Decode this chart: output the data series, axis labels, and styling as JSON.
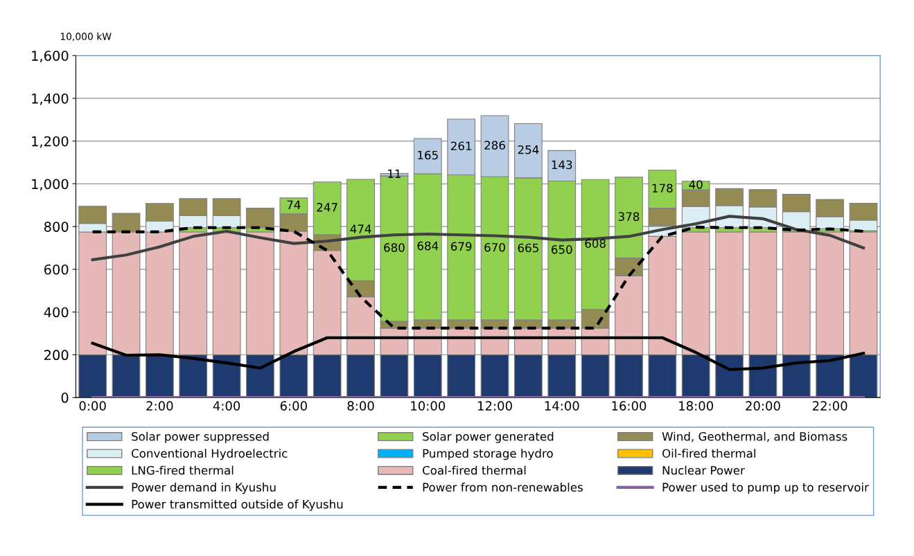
{
  "chart_data": {
    "type": "bar",
    "stacked": true,
    "ylabel": "10,000 kW",
    "categories": [
      "0:00",
      null,
      "2:00",
      null,
      "4:00",
      null,
      "6:00",
      null,
      "8:00",
      null,
      "10:00",
      null,
      "12:00",
      null,
      "14:00",
      null,
      "16:00",
      null,
      "18:00",
      null,
      "20:00",
      null,
      "22:00",
      null
    ],
    "ylim": [
      0,
      1600
    ],
    "yticks": [
      0,
      200,
      400,
      600,
      800,
      {
        "value": 1000,
        "label": "1,000"
      },
      {
        "value": 1200,
        "label": "1,200"
      },
      {
        "value": 1400,
        "label": "1,400"
      },
      {
        "value": 1600,
        "label": "1,600"
      }
    ],
    "grid": "y",
    "legend": "bottom",
    "marker": "none",
    "series": [
      {
        "name": "Nuclear Power",
        "color": "#1f3a6e",
        "values": [
          200,
          200,
          200,
          200,
          200,
          200,
          200,
          200,
          200,
          200,
          200,
          200,
          200,
          200,
          200,
          200,
          200,
          200,
          200,
          200,
          200,
          200,
          200,
          200
        ]
      },
      {
        "name": "Coal-fired thermal",
        "color": "#e6b8b7",
        "values": [
          575,
          575,
          575,
          575,
          575,
          575,
          578,
          488,
          271,
          125,
          125,
          125,
          125,
          125,
          125,
          125,
          369,
          554,
          575,
          575,
          575,
          575,
          575,
          575
        ]
      },
      {
        "name": "LNG-fired thermal",
        "color": "#92d050",
        "values": [
          0,
          0,
          0,
          20,
          20,
          20,
          0,
          0,
          0,
          0,
          0,
          0,
          0,
          0,
          0,
          0,
          0,
          0,
          20,
          20,
          20,
          5,
          15,
          5
        ]
      },
      {
        "name": "Oil-fired thermal",
        "color": "#ffc000",
        "values": [
          0,
          0,
          0,
          0,
          0,
          0,
          0,
          0,
          0,
          0,
          0,
          0,
          0,
          0,
          0,
          0,
          0,
          0,
          0,
          0,
          0,
          0,
          0,
          0
        ]
      },
      {
        "name": "Pumped storage hydro",
        "color": "#00b0f0",
        "values": [
          0,
          0,
          0,
          0,
          0,
          0,
          0,
          0,
          0,
          0,
          0,
          0,
          0,
          0,
          0,
          0,
          0,
          0,
          0,
          0,
          0,
          0,
          0,
          0
        ]
      },
      {
        "name": "Conventional Hydroelectric",
        "color": "#daeef3",
        "values": [
          40,
          0,
          50,
          56,
          56,
          0,
          0,
          0,
          0,
          0,
          0,
          0,
          0,
          0,
          0,
          0,
          0,
          48,
          98,
          103,
          97,
          90,
          56,
          50
        ]
      },
      {
        "name": "Wind, Geothermal, and Biomass",
        "color": "#948a54",
        "values": [
          80,
          87,
          83,
          80,
          80,
          91,
          82,
          74,
          76,
          32,
          38,
          38,
          38,
          38,
          38,
          87,
          84,
          84,
          79,
          80,
          81,
          81,
          81,
          79
        ]
      },
      {
        "name": "Solar power generated",
        "color": "#92d050",
        "values": [
          0,
          0,
          0,
          0,
          0,
          0,
          74,
          247,
          474,
          680,
          684,
          679,
          670,
          665,
          650,
          608,
          378,
          178,
          40,
          0,
          0,
          0,
          0,
          0
        ],
        "value_labels": [
          null,
          null,
          null,
          null,
          null,
          null,
          "74",
          "247",
          "474",
          "680",
          "684",
          "679",
          "670",
          "665",
          "650",
          "608",
          "378",
          "178",
          "40",
          null,
          null,
          null,
          null,
          null
        ]
      },
      {
        "name": "Solar power suppressed",
        "color": "#b8cce4",
        "values": [
          0,
          0,
          0,
          0,
          0,
          0,
          0,
          0,
          0,
          11,
          165,
          261,
          286,
          254,
          143,
          0,
          0,
          0,
          0,
          0,
          0,
          0,
          0,
          0
        ],
        "value_labels": [
          null,
          null,
          null,
          null,
          null,
          null,
          null,
          null,
          null,
          "11",
          "165",
          "261",
          "286",
          "254",
          "143",
          null,
          null,
          null,
          null,
          null,
          null,
          null,
          null,
          null
        ]
      },
      {
        "name": "Power demand in Kyushu",
        "type": "line",
        "color": "#404040",
        "line_style": "solid",
        "values": [
          645,
          667,
          705,
          754,
          778,
          748,
          721,
          732,
          750,
          761,
          765,
          761,
          757,
          750,
          737,
          743,
          754,
          786,
          813,
          848,
          837,
          786,
          759,
          700
        ]
      },
      {
        "name": "Power from non-renewables",
        "type": "line",
        "color": "#000000",
        "line_style": "dashed",
        "values": [
          775,
          775,
          775,
          795,
          795,
          795,
          778,
          688,
          471,
          325,
          325,
          325,
          325,
          325,
          325,
          325,
          569,
          754,
          797,
          795,
          795,
          783,
          789,
          778
        ]
      },
      {
        "name": "Power used to pump up to reservoir",
        "type": "line",
        "color": "#8064a2",
        "line_style": "solid",
        "values": [
          0,
          0,
          0,
          0,
          0,
          0,
          0,
          0,
          0,
          0,
          0,
          0,
          0,
          0,
          0,
          0,
          0,
          0,
          0,
          0,
          0,
          0,
          0,
          0
        ]
      },
      {
        "name": "Power transmitted outside of Kyushu",
        "type": "line",
        "color": "#000000",
        "line_style": "solid",
        "values": [
          254,
          198,
          200,
          183,
          162,
          138,
          215,
          280,
          280,
          280,
          280,
          280,
          280,
          280,
          280,
          280,
          280,
          280,
          211,
          131,
          138,
          162,
          173,
          207
        ]
      }
    ]
  }
}
